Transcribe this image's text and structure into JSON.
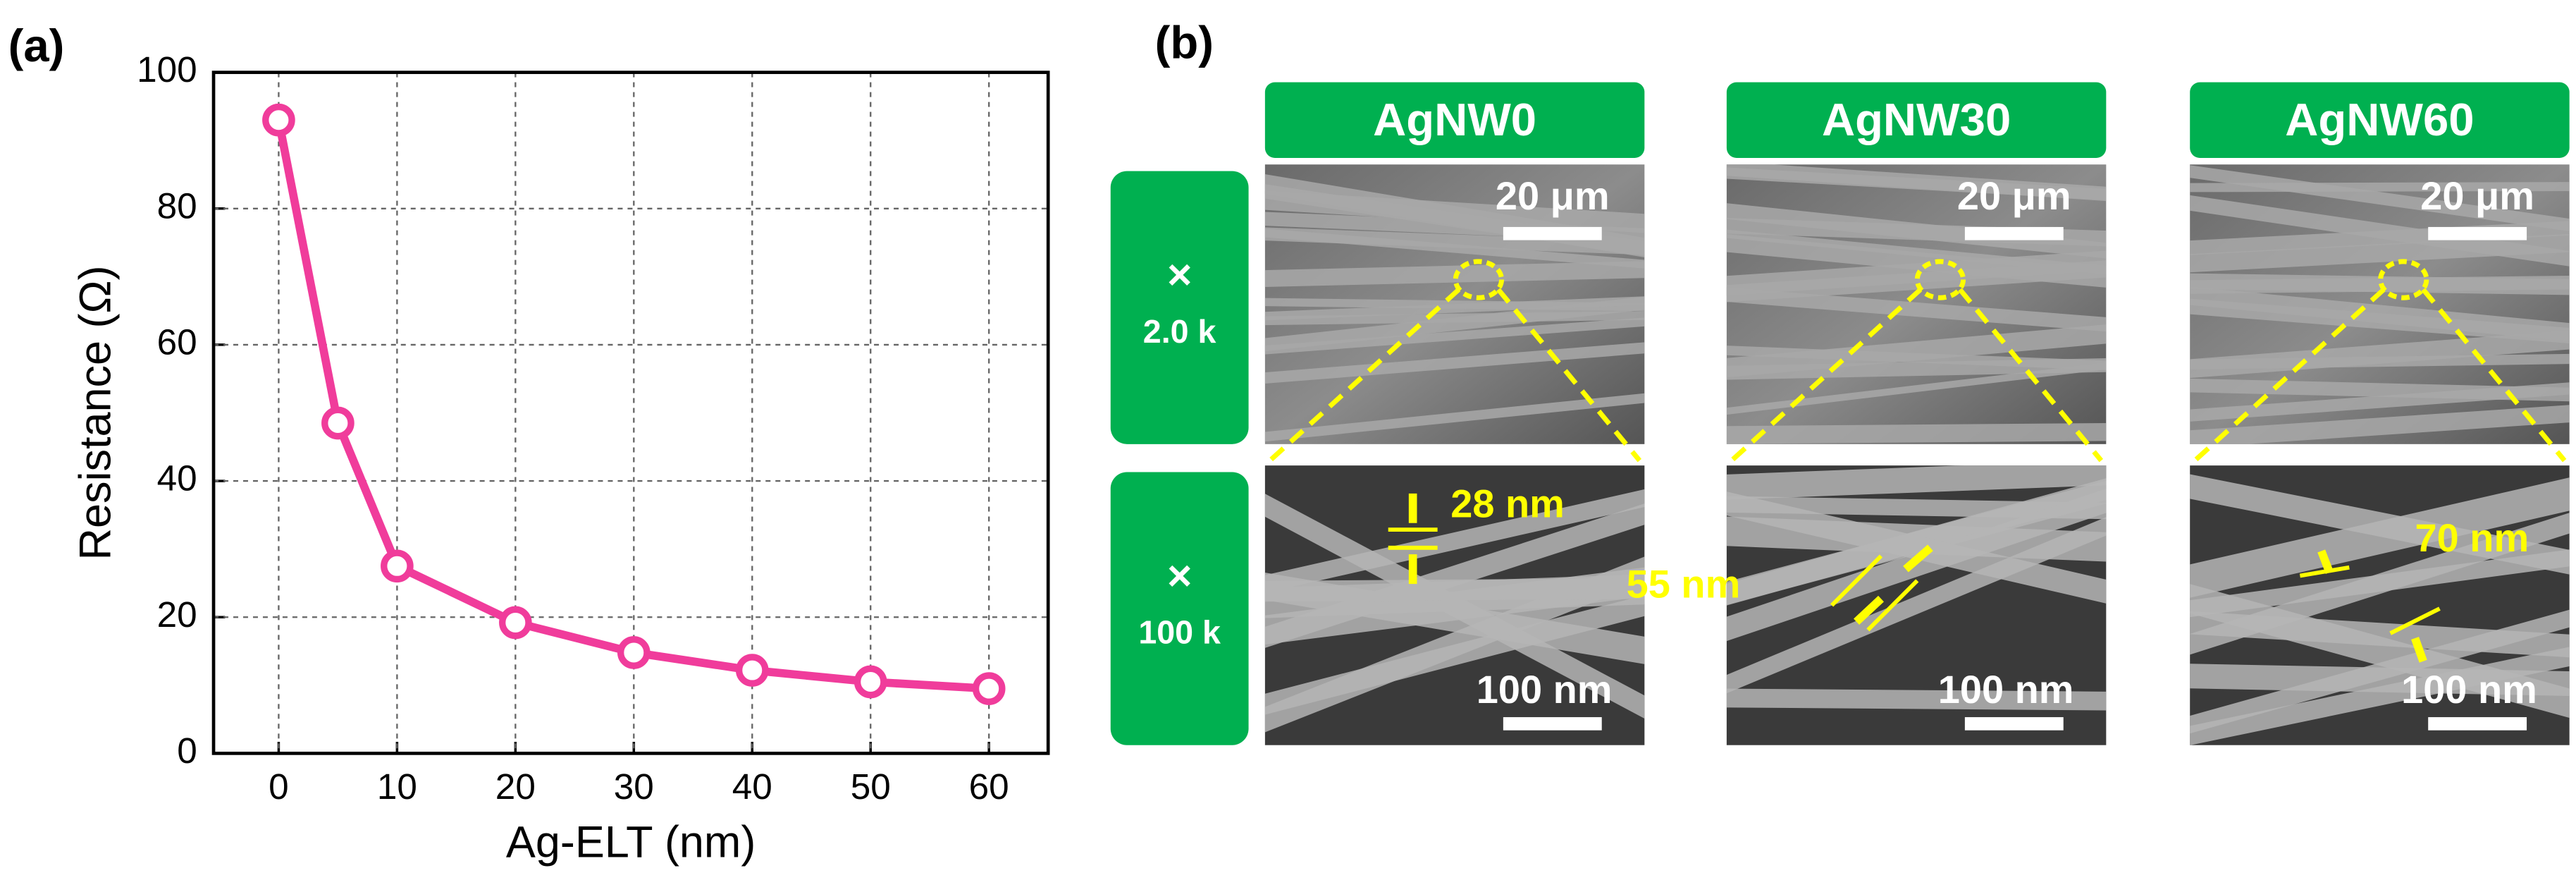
{
  "labels": {
    "a": "(a)",
    "b": "(b)"
  },
  "chart_data": {
    "type": "line",
    "x_label": "Ag-ELT (nm)",
    "y_label": "Resistance (Ω)",
    "x": [
      0,
      5,
      10,
      20,
      30,
      40,
      50,
      60
    ],
    "series": [
      {
        "color": "#f03c9b",
        "values": [
          93,
          48.5,
          27.5,
          19.2,
          14.8,
          12.2,
          10.5,
          9.5
        ]
      }
    ],
    "xlim": [
      -5.5,
      65
    ],
    "xticks": [
      0,
      10,
      20,
      30,
      40,
      50,
      60
    ],
    "ylim": [
      0,
      100
    ],
    "yticks": [
      0,
      20,
      40,
      60,
      80,
      100
    ],
    "grid": true
  },
  "sem": {
    "columns": [
      "AgNW0",
      "AgNW30",
      "AgNW60"
    ],
    "rows": [
      [
        "×",
        "2.0 k"
      ],
      [
        "×",
        "100 k"
      ]
    ],
    "scale_bars_low": [
      "20 μm",
      "20 μm",
      "20 μm"
    ],
    "scale_bars_high": [
      "100 nm",
      "100 nm",
      "100 nm"
    ],
    "diameters": [
      "28 nm",
      "55 nm",
      "70 nm"
    ]
  }
}
